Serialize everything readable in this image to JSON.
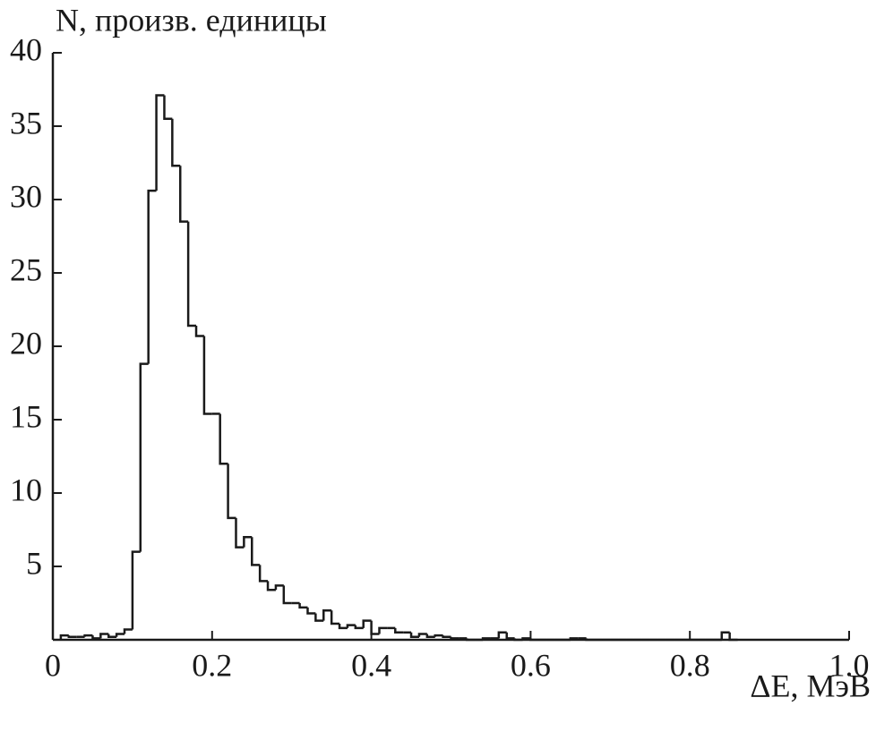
{
  "chart_data": {
    "type": "histogram",
    "ylabel": "N, произв. единицы",
    "xlabel": "ΔE, МэВ",
    "color": "#1a1a1a",
    "bins": [
      0.01,
      0.02,
      0.03,
      0.04,
      0.05,
      0.06,
      0.07,
      0.08,
      0.09,
      0.1,
      0.11,
      0.12,
      0.13,
      0.14,
      0.15,
      0.16,
      0.17,
      0.18,
      0.19,
      0.2,
      0.21,
      0.22,
      0.23,
      0.24,
      0.25,
      0.26,
      0.27,
      0.28,
      0.29,
      0.3,
      0.31,
      0.32,
      0.33,
      0.34,
      0.35,
      0.36,
      0.37,
      0.38,
      0.39,
      0.4,
      0.41,
      0.42,
      0.43,
      0.44,
      0.45,
      0.46,
      0.47,
      0.48,
      0.49,
      0.5,
      0.51,
      0.52,
      0.53,
      0.54,
      0.55,
      0.56,
      0.57,
      0.58,
      0.59,
      0.6,
      0.61,
      0.62,
      0.63,
      0.64,
      0.65,
      0.66,
      0.67,
      0.68,
      0.69,
      0.7,
      0.71,
      0.72,
      0.73,
      0.74,
      0.75,
      0.76,
      0.77,
      0.78,
      0.79,
      0.8,
      0.81,
      0.82,
      0.83,
      0.84,
      0.85,
      0.86
    ],
    "values": [
      0.3,
      0.2,
      0.2,
      0.3,
      0.1,
      0.4,
      0.2,
      0.4,
      0.7,
      6,
      18.8,
      30.6,
      37.1,
      35.5,
      32.3,
      28.5,
      21.4,
      20.7,
      15.4,
      15.4,
      12,
      8.3,
      6.3,
      7,
      5.1,
      4,
      3.4,
      3.7,
      2.5,
      2.5,
      2.2,
      1.8,
      1.3,
      2,
      1.1,
      0.8,
      1,
      0.8,
      1.3,
      0.4,
      0.8,
      0.8,
      0.5,
      0.5,
      0.2,
      0.4,
      0.2,
      0.3,
      0.2,
      0.1,
      0.1,
      0,
      0,
      0.1,
      0.1,
      0.5,
      0.1,
      0,
      0.1,
      0,
      0,
      0,
      0,
      0,
      0.1,
      0.1,
      0,
      0,
      0,
      0,
      0,
      0,
      0,
      0,
      0,
      0,
      0,
      0,
      0,
      0,
      0,
      0,
      0,
      0.5,
      0
    ],
    "xlim": [
      0,
      1
    ],
    "ylim": [
      0,
      40
    ],
    "xticks": [
      {
        "value": 0,
        "label": "0"
      },
      0.2,
      0.4,
      0.6,
      0.8,
      {
        "value": 1,
        "label": "1.0"
      }
    ],
    "yticks": [
      5,
      10,
      15,
      20,
      25,
      30,
      35,
      40
    ]
  }
}
